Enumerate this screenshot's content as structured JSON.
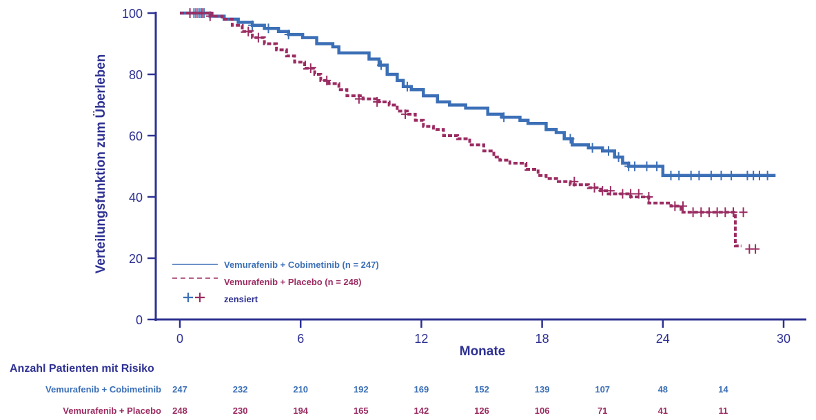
{
  "chart_data": {
    "type": "line",
    "xlabel": "Monate",
    "ylabel": "Verteilungsfunktion zum Überleben",
    "xlim": [
      0,
      30
    ],
    "ylim": [
      0,
      100
    ],
    "x_ticks": [
      0,
      6,
      12,
      18,
      24,
      30
    ],
    "y_ticks": [
      0,
      20,
      40,
      60,
      80,
      100
    ],
    "grid": false,
    "legend_position": "bottom-left",
    "legend_censor_label": "zensiert",
    "colors": {
      "cobi": "#3b6fb6",
      "placebo": "#9b2c62",
      "axis": "#2e3192"
    },
    "series": [
      {
        "name": "Vemurafenib + Cobimetinib (n = 247)",
        "style": "solid",
        "x": [
          0,
          1.5,
          2.2,
          2.9,
          3.6,
          4.2,
          4.9,
          5.4,
          6.1,
          6.8,
          7.6,
          7.9,
          9.4,
          9.9,
          10.3,
          10.8,
          11.1,
          11.5,
          12.1,
          12.8,
          13.4,
          14.2,
          15.3,
          16.0,
          16.9,
          17.3,
          18.2,
          18.7,
          19.1,
          19.5,
          20.3,
          21.0,
          21.6,
          22.0,
          22.3,
          24.0,
          29.6
        ],
        "y": [
          100,
          99,
          98,
          97,
          96,
          95,
          94,
          93,
          92,
          90,
          89,
          87,
          85,
          83,
          80,
          78,
          76,
          75,
          73,
          71,
          70,
          69,
          67,
          66,
          65,
          64,
          62,
          61,
          59,
          57,
          56,
          55,
          53,
          51,
          50,
          47,
          47
        ],
        "censor_x": [
          0.7,
          0.9,
          1.0,
          1.2,
          3.6,
          4.4,
          5.4,
          10.0,
          11.3,
          16.1,
          19.4,
          20.5,
          21.3,
          21.8,
          22.3,
          22.6,
          23.2,
          23.7,
          24.4,
          24.8,
          25.4,
          25.8,
          26.4,
          26.9,
          27.4,
          28.2,
          28.5,
          28.8,
          29.2
        ]
      },
      {
        "name": "Vemurafenib + Placebo (n = 248)",
        "style": "dashed",
        "x": [
          0,
          1.6,
          2.1,
          2.6,
          3.1,
          3.6,
          4.2,
          4.8,
          5.3,
          5.7,
          6.2,
          6.7,
          7.0,
          7.4,
          7.9,
          8.3,
          9.1,
          9.9,
          10.4,
          10.8,
          11.3,
          11.7,
          12.1,
          12.6,
          13.1,
          13.8,
          14.4,
          15.1,
          15.6,
          15.9,
          16.4,
          17.2,
          17.8,
          18.2,
          18.8,
          19.4,
          20.3,
          20.9,
          21.2,
          21.8,
          22.4,
          23.3,
          24.4,
          24.9,
          25.2,
          27.6,
          27.9
        ],
        "y": [
          100,
          99,
          98,
          96,
          94,
          92,
          90,
          88,
          86,
          84,
          82,
          80,
          78,
          77,
          75,
          73,
          72,
          71,
          70,
          68,
          67,
          65,
          63,
          62,
          60,
          59,
          57,
          55,
          53,
          52,
          51,
          49,
          47,
          46,
          45,
          44,
          43,
          42,
          41,
          41,
          40,
          38,
          37,
          35,
          35,
          24,
          24
        ],
        "censor_x": [
          0.5,
          0.8,
          1.1,
          1.5,
          3.4,
          3.9,
          6.5,
          7.3,
          8.9,
          9.8,
          11.2,
          19.6,
          20.6,
          21.0,
          21.4,
          22.0,
          22.4,
          22.8,
          23.3,
          24.6,
          25.0,
          25.5,
          25.9,
          26.3,
          26.7,
          27.1,
          27.5,
          28.0,
          28.3,
          28.6
        ],
        "censor_y": [
          100,
          100,
          100,
          99,
          94,
          92,
          82,
          78,
          72,
          71,
          67,
          45,
          43,
          42,
          42,
          41,
          41,
          41,
          40,
          37,
          37,
          35,
          35,
          35,
          35,
          35,
          35,
          35,
          23,
          23
        ]
      }
    ]
  },
  "risk_table": {
    "title": "Anzahl Patienten mit Risiko",
    "timepoints": [
      0,
      3,
      6,
      9,
      12,
      15,
      18,
      21,
      24,
      27
    ],
    "rows": [
      {
        "label": "Vemurafenib + Cobimetinib",
        "values": [
          "247",
          "232",
          "210",
          "192",
          "169",
          "152",
          "139",
          "107",
          "48",
          "14"
        ]
      },
      {
        "label": "Vemurafenib + Placebo",
        "values": [
          "248",
          "230",
          "194",
          "165",
          "142",
          "126",
          "106",
          "71",
          "41",
          "11"
        ]
      }
    ]
  }
}
